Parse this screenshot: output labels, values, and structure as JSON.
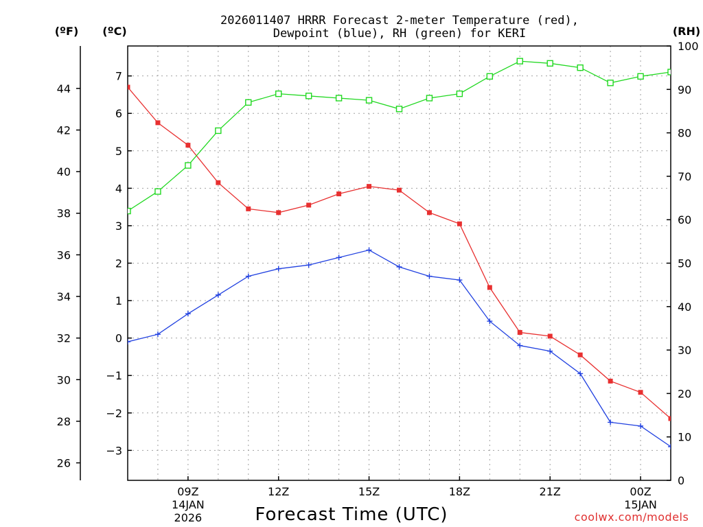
{
  "chart_data": {
    "type": "line",
    "title_line1": "2026011407 HRRR Forecast 2-meter Temperature (red),",
    "title_line2": "Dewpoint (blue), RH (green) for KERI",
    "xlabel": "Forecast Time (UTC)",
    "credit": "coolwx.com/models",
    "units": {
      "fahrenheit": "(ºF)",
      "celsius": "(ºC)",
      "rh": "(RH)"
    },
    "colors": {
      "temperature": "#e83030",
      "dewpoint": "#2040e0",
      "rh": "#20d820"
    },
    "x_hours": [
      7,
      8,
      9,
      10,
      11,
      12,
      13,
      14,
      15,
      16,
      17,
      18,
      19,
      20,
      21,
      22,
      23,
      24,
      25
    ],
    "x_range": [
      7,
      25
    ],
    "x_ticks": [
      {
        "hour": 9,
        "labels": [
          "09Z",
          "14JAN",
          "2026"
        ]
      },
      {
        "hour": 12,
        "labels": [
          "12Z"
        ]
      },
      {
        "hour": 15,
        "labels": [
          "15Z"
        ]
      },
      {
        "hour": 18,
        "labels": [
          "18Z"
        ]
      },
      {
        "hour": 21,
        "labels": [
          "21Z"
        ]
      },
      {
        "hour": 24,
        "labels": [
          "00Z",
          "15JAN"
        ]
      }
    ],
    "celsius_range": [
      -3.8,
      7.8
    ],
    "celsius_ticks": [
      "-3",
      "-2",
      "-1",
      "0",
      "1",
      "2",
      "3",
      "4",
      "5",
      "6",
      "7"
    ],
    "fahrenheit_ticks": [
      "26",
      "28",
      "30",
      "32",
      "34",
      "36",
      "38",
      "40",
      "42",
      "44"
    ],
    "rh_range": [
      0,
      100
    ],
    "rh_ticks": [
      "0",
      "10",
      "20",
      "30",
      "40",
      "50",
      "60",
      "70",
      "80",
      "90",
      "100"
    ],
    "series": [
      {
        "name": "Temperature",
        "axis": "celsius",
        "marker": "filled-square",
        "values": [
          6.7,
          5.75,
          5.15,
          4.15,
          3.45,
          3.35,
          3.55,
          3.85,
          4.05,
          3.95,
          3.35,
          3.05,
          1.35,
          0.15,
          0.05,
          -0.45,
          -1.15,
          -1.45,
          -2.15
        ]
      },
      {
        "name": "Dewpoint",
        "axis": "celsius",
        "marker": "plus",
        "values": [
          -0.1,
          0.1,
          0.65,
          1.15,
          1.65,
          1.85,
          1.95,
          2.15,
          2.35,
          1.9,
          1.65,
          1.55,
          0.45,
          -0.2,
          -0.35,
          -0.95,
          -2.25,
          -2.35,
          -2.9
        ]
      },
      {
        "name": "RH",
        "axis": "rh",
        "marker": "open-square",
        "values": [
          62,
          66.5,
          72.5,
          80.5,
          87,
          89,
          88.5,
          88,
          87.5,
          85.5,
          88,
          89,
          93,
          96.5,
          96,
          95,
          91.5,
          93,
          94
        ]
      }
    ]
  }
}
